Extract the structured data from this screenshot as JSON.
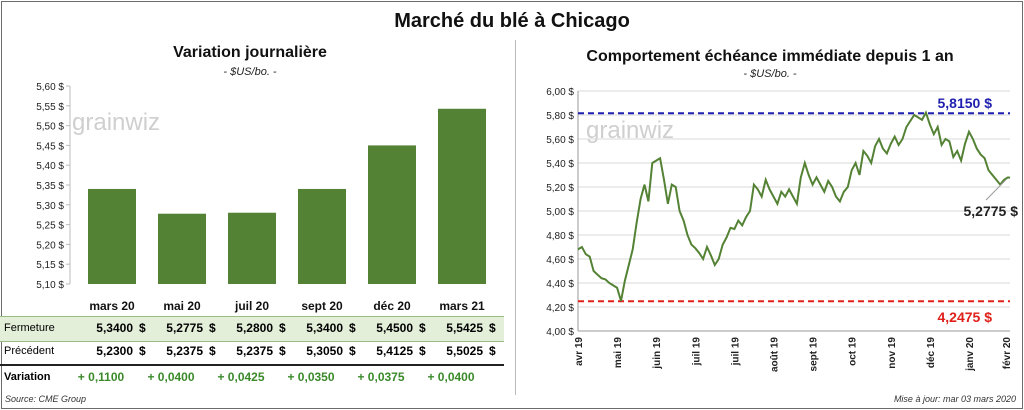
{
  "title": "Marché du blé à Chicago",
  "left": {
    "title": "Variation journalière",
    "subtitle": "- $US/bo. -",
    "watermark": "grainwiz"
  },
  "right": {
    "title": "Comportement échéance immédiate depuis 1 an",
    "subtitle": "- $US/bo. -",
    "watermark": "grainwiz",
    "max_label": "5,8150 $",
    "min_label": "4,2475 $",
    "last_label": "5,2775 $"
  },
  "table": {
    "close_label": "Fermeture",
    "prev_label": "Précédent",
    "var_label": "Variation",
    "currency": "$",
    "close": [
      "5,3400",
      "5,2775",
      "5,2800",
      "5,3400",
      "5,4500",
      "5,5425"
    ],
    "prev": [
      "5,2300",
      "5,2375",
      "5,2375",
      "5,3050",
      "5,4125",
      "5,5025"
    ],
    "var": [
      "+ 0,1100",
      "+ 0,0400",
      "+ 0,0425",
      "+ 0,0350",
      "+ 0,0375",
      "+ 0,0400"
    ]
  },
  "footer": {
    "source": "Source: CME Group",
    "updated": "Mise à jour: mar 03 mars 2020"
  },
  "chart_data": [
    {
      "type": "bar",
      "title": "Variation journalière",
      "subtitle": "- $US/bo. -",
      "categories": [
        "mars 20",
        "mai 20",
        "juil 20",
        "sept 20",
        "déc 20",
        "mars 21"
      ],
      "values": [
        5.34,
        5.2775,
        5.28,
        5.34,
        5.45,
        5.5425
      ],
      "ylim": [
        5.1,
        5.6
      ],
      "yticks": [
        "5,10 $",
        "5,15 $",
        "5,20 $",
        "5,25 $",
        "5,30 $",
        "5,35 $",
        "5,40 $",
        "5,45 $",
        "5,50 $",
        "5,55 $",
        "5,60 $"
      ],
      "ytick_values": [
        5.1,
        5.15,
        5.2,
        5.25,
        5.3,
        5.35,
        5.4,
        5.45,
        5.5,
        5.55,
        5.6
      ],
      "grid": false,
      "color": "#548235"
    },
    {
      "type": "line",
      "title": "Comportement échéance immédiate depuis 1 an",
      "subtitle": "- $US/bo. -",
      "ylim": [
        4.0,
        6.0
      ],
      "xlim": [
        0,
        11.05
      ],
      "yticks": [
        "4,00 $",
        "4,20 $",
        "4,40 $",
        "4,60 $",
        "4,80 $",
        "5,00 $",
        "5,20 $",
        "5,40 $",
        "5,60 $",
        "5,80 $",
        "6,00 $"
      ],
      "ytick_values": [
        4.0,
        4.2,
        4.4,
        4.6,
        4.8,
        5.0,
        5.2,
        5.4,
        5.6,
        5.8,
        6.0
      ],
      "xticks": [
        "avr 19",
        "mai 19",
        "juin 19",
        "juil 19",
        "juil 19",
        "août 19",
        "sept 19",
        "oct 19",
        "nov 19",
        "déc 19",
        "janv 20",
        "févr 20"
      ],
      "xtick_values": [
        0,
        1,
        2,
        3,
        4,
        5,
        6,
        7,
        8,
        9,
        10,
        11
      ],
      "grid": true,
      "color": "#548235",
      "max_line": 5.815,
      "min_line": 4.2475,
      "last": 5.2775,
      "x": [
        0,
        0.1,
        0.2,
        0.3,
        0.4,
        0.5,
        0.6,
        0.7,
        0.8,
        0.9,
        1.0,
        1.1,
        1.2,
        1.3,
        1.4,
        1.5,
        1.6,
        1.7,
        1.8,
        1.9,
        2.0,
        2.1,
        2.2,
        2.3,
        2.4,
        2.5,
        2.6,
        2.7,
        2.8,
        2.9,
        3.0,
        3.1,
        3.2,
        3.3,
        3.4,
        3.5,
        3.6,
        3.7,
        3.8,
        3.9,
        4.0,
        4.1,
        4.2,
        4.3,
        4.4,
        4.5,
        4.6,
        4.7,
        4.8,
        4.9,
        5.0,
        5.1,
        5.2,
        5.3,
        5.4,
        5.5,
        5.6,
        5.7,
        5.8,
        5.9,
        6.0,
        6.1,
        6.2,
        6.3,
        6.4,
        6.5,
        6.6,
        6.7,
        6.8,
        6.9,
        7.0,
        7.1,
        7.2,
        7.3,
        7.4,
        7.5,
        7.6,
        7.7,
        7.8,
        7.9,
        8.0,
        8.1,
        8.2,
        8.3,
        8.4,
        8.5,
        8.6,
        8.7,
        8.8,
        8.9,
        9.0,
        9.1,
        9.2,
        9.3,
        9.4,
        9.5,
        9.6,
        9.7,
        9.8,
        9.9,
        10.0,
        10.1,
        10.2,
        10.3,
        10.4,
        10.5,
        10.6,
        10.7,
        10.8,
        10.9,
        11.0,
        11.05
      ],
      "y": [
        4.68,
        4.7,
        4.64,
        4.62,
        4.5,
        4.47,
        4.44,
        4.43,
        4.4,
        4.38,
        4.36,
        4.25,
        4.42,
        4.55,
        4.68,
        4.9,
        5.1,
        5.22,
        5.08,
        5.4,
        5.42,
        5.44,
        5.26,
        5.06,
        5.22,
        5.2,
        5.0,
        4.92,
        4.8,
        4.72,
        4.69,
        4.65,
        4.6,
        4.7,
        4.63,
        4.55,
        4.6,
        4.72,
        4.78,
        4.86,
        4.85,
        4.92,
        4.88,
        4.95,
        5.0,
        5.22,
        5.18,
        5.12,
        5.26,
        5.18,
        5.12,
        5.06,
        5.16,
        5.12,
        5.18,
        5.12,
        5.06,
        5.28,
        5.4,
        5.3,
        5.22,
        5.28,
        5.22,
        5.16,
        5.25,
        5.2,
        5.12,
        5.08,
        5.16,
        5.2,
        5.34,
        5.4,
        5.3,
        5.5,
        5.46,
        5.4,
        5.54,
        5.6,
        5.52,
        5.48,
        5.56,
        5.62,
        5.55,
        5.6,
        5.7,
        5.75,
        5.8,
        5.78,
        5.76,
        5.82,
        5.72,
        5.64,
        5.7,
        5.55,
        5.6,
        5.58,
        5.45,
        5.5,
        5.42,
        5.56,
        5.66,
        5.6,
        5.52,
        5.47,
        5.44,
        5.34,
        5.3,
        5.26,
        5.22,
        5.26,
        5.28,
        5.2775
      ]
    }
  ]
}
